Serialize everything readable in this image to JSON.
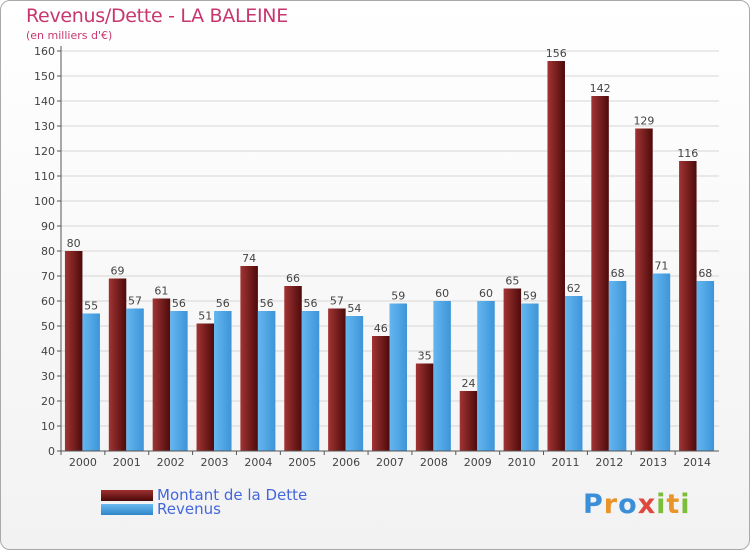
{
  "header": {
    "title": "Revenus/Dette - LA BALEINE",
    "subtitle": "(en milliers d'€)"
  },
  "chart_data": {
    "type": "bar",
    "title": "Revenus/Dette - LA BALEINE",
    "ylabel": "(en milliers d'€)",
    "xlabel": "",
    "ylim": [
      0,
      160
    ],
    "ytick_step": 10,
    "grid": true,
    "legend_position": "bottom-left",
    "categories": [
      "2000",
      "2001",
      "2002",
      "2003",
      "2004",
      "2005",
      "2006",
      "2007",
      "2008",
      "2009",
      "2010",
      "2011",
      "2012",
      "2013",
      "2014"
    ],
    "series": [
      {
        "name": "Montant de la Dette",
        "color": "#7b1c1c",
        "values": [
          80,
          69,
          61,
          51,
          74,
          66,
          57,
          46,
          35,
          24,
          65,
          156,
          142,
          129,
          116
        ]
      },
      {
        "name": "Revenus",
        "color": "#4aa3e6",
        "values": [
          55,
          57,
          56,
          56,
          56,
          56,
          54,
          59,
          60,
          60,
          59,
          62,
          68,
          71,
          68
        ]
      }
    ]
  },
  "legend": {
    "items": [
      {
        "label": "Montant de la Dette",
        "color": "#7b1c1c"
      },
      {
        "label": "Revenus",
        "color": "#4aa3e6"
      }
    ]
  },
  "brand": {
    "name": "Proxiti",
    "letters": [
      {
        "char": "P",
        "color": "#3a8fd8"
      },
      {
        "char": "r",
        "color": "#e8942a"
      },
      {
        "char": "o",
        "color": "#3a8fd8"
      },
      {
        "char": "x",
        "color": "#e0483e"
      },
      {
        "char": "i",
        "color": "#7cbd3c"
      },
      {
        "char": "t",
        "color": "#e8942a"
      },
      {
        "char": "i",
        "color": "#7cbd3c"
      }
    ]
  }
}
